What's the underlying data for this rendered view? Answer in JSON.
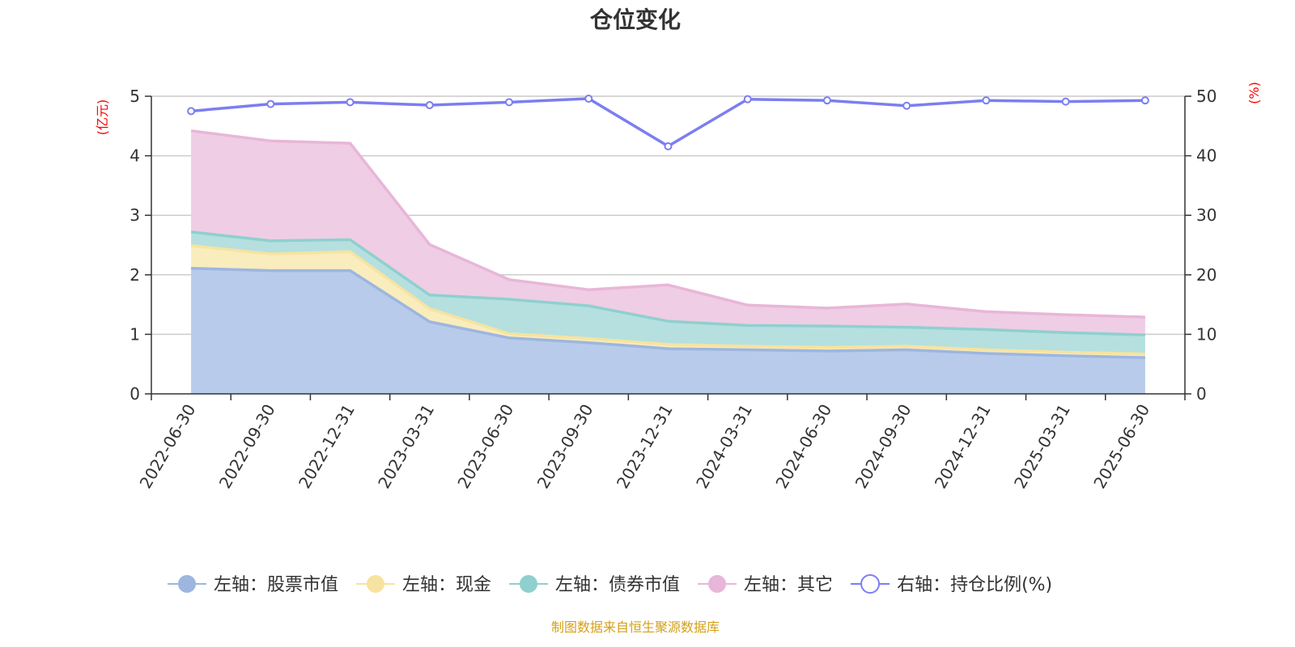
{
  "chart_data": {
    "type": "area",
    "title": "仓位变化",
    "y_left_unit": "(亿元)",
    "y_right_unit": "(%)",
    "y_left_range": [
      0,
      5
    ],
    "y_right_range": [
      0,
      50
    ],
    "y_left_ticks": [
      "0",
      "1",
      "2",
      "3",
      "4",
      "5"
    ],
    "y_right_ticks": [
      "0",
      "10",
      "20",
      "30",
      "40",
      "50"
    ],
    "grid": true,
    "stacked": true,
    "legend_position": "bottom",
    "categories": [
      "2022-06-30",
      "2022-09-30",
      "2022-12-31",
      "2023-03-31",
      "2023-06-30",
      "2023-09-30",
      "2023-12-31",
      "2024-03-31",
      "2024-06-30",
      "2024-09-30",
      "2024-12-31",
      "2025-03-31",
      "2025-06-30"
    ],
    "series": [
      {
        "name": "左轴：股票市值",
        "axis": "left",
        "color": "#9db6e0",
        "fill": "#b8cbea",
        "values": [
          2.11,
          2.07,
          2.07,
          1.21,
          0.94,
          0.86,
          0.76,
          0.74,
          0.72,
          0.74,
          0.68,
          0.64,
          0.61
        ]
      },
      {
        "name": "左轴：现金",
        "axis": "left",
        "color": "#f7e3a0",
        "fill": "#f9edbd",
        "values": [
          0.38,
          0.28,
          0.32,
          0.22,
          0.07,
          0.07,
          0.07,
          0.06,
          0.06,
          0.06,
          0.06,
          0.06,
          0.06
        ]
      },
      {
        "name": "左轴：债券市值",
        "axis": "left",
        "color": "#8fd0cf",
        "fill": "#b5e0df",
        "values": [
          0.23,
          0.22,
          0.2,
          0.23,
          0.58,
          0.55,
          0.39,
          0.35,
          0.36,
          0.32,
          0.34,
          0.33,
          0.32
        ]
      },
      {
        "name": "左轴：其它",
        "axis": "left",
        "color": "#e8b6d8",
        "fill": "#efcde5",
        "values": [
          1.7,
          1.68,
          1.62,
          0.85,
          0.33,
          0.27,
          0.61,
          0.34,
          0.3,
          0.39,
          0.3,
          0.3,
          0.3
        ]
      },
      {
        "name": "右轴：持仓比例(%)",
        "axis": "right",
        "type": "line",
        "color": "#7b7ef0",
        "values": [
          47.5,
          48.7,
          49.0,
          48.5,
          49.0,
          49.6,
          41.6,
          49.5,
          49.3,
          48.4,
          49.3,
          49.1,
          49.3
        ]
      }
    ]
  },
  "source_text": "制图数据来自恒生聚源数据库",
  "colors": {
    "axis": "#333333",
    "grid": "#cccccc",
    "unit": "#ff0000",
    "source": "#d4a017"
  }
}
